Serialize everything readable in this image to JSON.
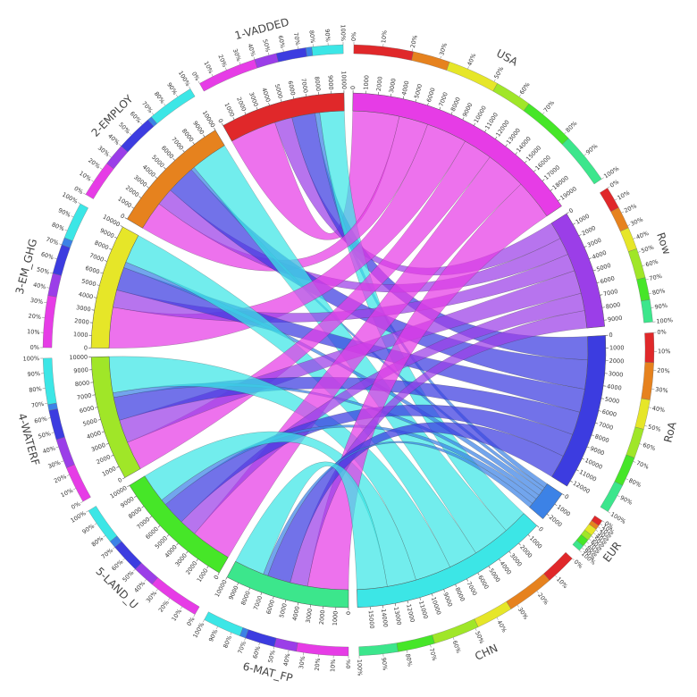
{
  "chart_data": {
    "type": "chord",
    "groups": [
      {
        "name": "USA",
        "color": "#e63ce6",
        "ticks": [
          0,
          1000,
          2000,
          3000,
          4000,
          5000,
          6000,
          7000,
          8000,
          9000,
          10000,
          11000,
          12000,
          13000,
          14000,
          15000,
          16000,
          17000,
          18000,
          19000
        ]
      },
      {
        "name": "Row",
        "color": "#9b3ee8",
        "ticks": [
          0,
          1000,
          2000,
          3000,
          4000,
          5000,
          6000,
          7000,
          8000,
          9000
        ]
      },
      {
        "name": "RoA",
        "color": "#3c3ce0",
        "ticks": [
          0,
          1000,
          2000,
          3000,
          4000,
          5000,
          6000,
          7000,
          8000,
          9000,
          10000,
          11000,
          12000
        ]
      },
      {
        "name": "EUR",
        "color": "#3c82e6",
        "ticks": [
          0,
          1000,
          2000
        ]
      },
      {
        "name": "CHN",
        "color": "#3ce6e6",
        "ticks": [
          0,
          1000,
          2000,
          3000,
          4000,
          5000,
          6000,
          7000,
          8000,
          9000,
          10000,
          11000,
          12000,
          13000,
          14000,
          15000
        ]
      },
      {
        "name": "6-MAT_FP",
        "color": "#3ce68c",
        "ticks": [
          0,
          1000,
          2000,
          3000,
          4000,
          5000,
          6000,
          7000,
          8000,
          9000,
          10000
        ]
      },
      {
        "name": "5-LAND_U",
        "color": "#46e628",
        "ticks": [
          0,
          1000,
          2000,
          3000,
          4000,
          5000,
          6000,
          7000,
          8000,
          9000,
          10000
        ]
      },
      {
        "name": "4-WATERF",
        "color": "#a0e628",
        "ticks": [
          0,
          1000,
          2000,
          3000,
          4000,
          5000,
          6000,
          7000,
          8000,
          9000,
          10000
        ]
      },
      {
        "name": "3-EM_GHG",
        "color": "#e6e628",
        "ticks": [
          0,
          1000,
          2000,
          3000,
          4000,
          5000,
          6000,
          7000,
          8000,
          9000,
          10000
        ]
      },
      {
        "name": "2-EMPLOY",
        "color": "#e6821e",
        "ticks": [
          0,
          1000,
          2000,
          3000,
          4000,
          5000,
          6000,
          7000,
          8000,
          9000,
          10000
        ]
      },
      {
        "name": "1-VADDED",
        "color": "#e0282a",
        "ticks": [
          0,
          1000,
          2000,
          3000,
          4000,
          5000,
          6000,
          7000,
          8000,
          9000,
          10000
        ]
      }
    ],
    "matrix": [
      [
        4000,
        1500,
        2000,
        400,
        2100
      ],
      [
        2500,
        1500,
        2500,
        300,
        3200
      ],
      [
        3500,
        1500,
        2000,
        500,
        2500
      ],
      [
        2500,
        2000,
        2000,
        400,
        3100
      ],
      [
        3500,
        1500,
        2000,
        500,
        2500
      ],
      [
        3500,
        1500,
        2000,
        400,
        2600
      ]
    ],
    "percent_ticks": [
      {
        "value": 0,
        "label": "0%"
      },
      {
        "value": 10,
        "label": "10%"
      },
      {
        "value": 20,
        "label": "20%"
      },
      {
        "value": 30,
        "label": "30%"
      },
      {
        "value": 40,
        "label": "40%"
      },
      {
        "value": 50,
        "label": "50%"
      },
      {
        "value": 60,
        "label": "60%"
      },
      {
        "value": 70,
        "label": "70%"
      },
      {
        "value": 80,
        "label": "80%"
      },
      {
        "value": 90,
        "label": "90%"
      },
      {
        "value": 100,
        "label": "100%"
      }
    ]
  }
}
